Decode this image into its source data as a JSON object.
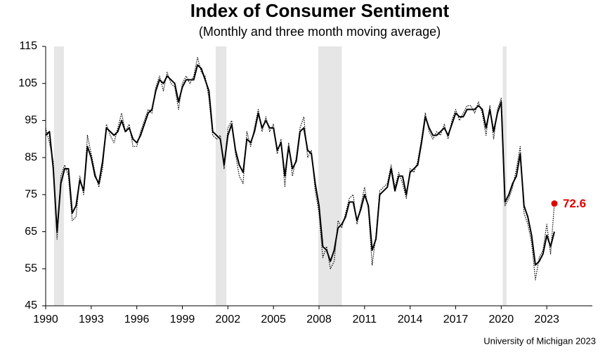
{
  "chart_data": {
    "type": "line",
    "title": "Index of Consumer Sentiment",
    "subtitle": "(Monthly and three month moving average)",
    "source": "University of Michigan 2023",
    "x": [
      1990,
      1990.25,
      1990.5,
      1990.75,
      1991,
      1991.25,
      1991.5,
      1991.75,
      1992,
      1992.25,
      1992.5,
      1992.75,
      1993,
      1993.25,
      1993.5,
      1993.75,
      1994,
      1994.25,
      1994.5,
      1994.75,
      1995,
      1995.25,
      1995.5,
      1995.75,
      1996,
      1996.25,
      1996.5,
      1996.75,
      1997,
      1997.25,
      1997.5,
      1997.75,
      1998,
      1998.25,
      1998.5,
      1998.75,
      1999,
      1999.25,
      1999.5,
      1999.75,
      2000,
      2000.25,
      2000.5,
      2000.75,
      2001,
      2001.25,
      2001.5,
      2001.75,
      2002,
      2002.25,
      2002.5,
      2002.75,
      2003,
      2003.25,
      2003.5,
      2003.75,
      2004,
      2004.25,
      2004.5,
      2004.75,
      2005,
      2005.25,
      2005.5,
      2005.75,
      2006,
      2006.25,
      2006.5,
      2006.75,
      2007,
      2007.25,
      2007.5,
      2007.75,
      2008,
      2008.25,
      2008.5,
      2008.75,
      2009,
      2009.25,
      2009.5,
      2009.75,
      2010,
      2010.25,
      2010.5,
      2010.75,
      2011,
      2011.25,
      2011.5,
      2011.75,
      2012,
      2012.25,
      2012.5,
      2012.75,
      2013,
      2013.25,
      2013.5,
      2013.75,
      2014,
      2014.25,
      2014.5,
      2014.75,
      2015,
      2015.25,
      2015.5,
      2015.75,
      2016,
      2016.25,
      2016.5,
      2016.75,
      2017,
      2017.25,
      2017.5,
      2017.75,
      2018,
      2018.25,
      2018.5,
      2018.75,
      2019,
      2019.25,
      2019.5,
      2019.75,
      2020,
      2020.25,
      2020.5,
      2020.75,
      2021,
      2021.25,
      2021.5,
      2021.75,
      2022,
      2022.25,
      2022.5,
      2022.75,
      2023,
      2023.25,
      2023.5
    ],
    "series": [
      {
        "name": "Three month moving average",
        "color": "#000000",
        "style": "solid",
        "values": [
          91,
          92,
          82,
          65,
          78,
          82,
          82,
          70,
          72,
          79,
          76,
          88,
          85,
          80,
          78,
          84,
          93,
          92,
          91,
          92,
          95,
          92,
          93,
          90,
          89,
          91,
          94,
          97,
          98,
          103,
          106,
          105,
          107,
          106,
          105,
          100,
          104,
          106,
          106,
          106,
          110,
          109,
          106,
          103,
          92,
          91,
          90,
          83,
          91,
          94,
          87,
          83,
          81,
          90,
          89,
          92,
          97,
          93,
          95,
          93,
          93,
          87,
          89,
          80,
          88,
          82,
          84,
          92,
          93,
          87,
          86,
          78,
          72,
          61,
          60,
          57,
          60,
          66,
          67,
          69,
          73,
          73,
          68,
          71,
          75,
          72,
          60,
          63,
          75,
          76,
          77,
          82,
          76,
          80,
          80,
          75,
          81,
          82,
          83,
          89,
          96,
          93,
          91,
          91,
          92,
          93,
          91,
          94,
          97,
          96,
          96,
          98,
          98,
          98,
          99,
          98,
          93,
          98,
          92,
          97,
          100,
          73,
          75,
          78,
          80,
          86,
          72,
          69,
          64,
          56,
          57,
          59,
          64,
          61,
          65
        ]
      },
      {
        "name": "Monthly",
        "color": "#000000",
        "style": "dotted",
        "values": [
          93,
          89,
          84,
          63,
          80,
          83,
          80,
          68,
          69,
          80,
          75,
          91,
          86,
          81,
          77,
          82,
          94,
          91,
          89,
          93,
          97,
          92,
          94,
          88,
          88,
          92,
          95,
          98,
          97,
          104,
          107,
          103,
          108,
          105,
          104,
          98,
          105,
          107,
          105,
          107,
          112,
          108,
          107,
          101,
          91,
          90,
          91,
          82,
          93,
          95,
          86,
          80,
          78,
          92,
          88,
          93,
          98,
          92,
          96,
          92,
          94,
          86,
          90,
          77,
          89,
          80,
          85,
          93,
          96,
          85,
          87,
          76,
          70,
          58,
          61,
          55,
          57,
          68,
          66,
          70,
          74,
          75,
          67,
          72,
          77,
          71,
          56,
          64,
          76,
          77,
          78,
          83,
          77,
          81,
          78,
          74,
          82,
          81,
          84,
          90,
          97,
          92,
          90,
          92,
          91,
          94,
          90,
          95,
          98,
          95,
          97,
          99,
          99,
          97,
          100,
          97,
          91,
          99,
          90,
          98,
          101,
          72,
          74,
          77,
          82,
          88,
          70,
          67,
          62,
          52,
          58,
          60,
          67,
          59,
          72.6
        ]
      }
    ],
    "highlight_color": "#e00000",
    "recessions": [
      [
        1990.55,
        1991.2
      ],
      [
        2001.2,
        2001.9
      ],
      [
        2007.95,
        2009.5
      ],
      [
        2020.1,
        2020.35
      ]
    ],
    "recession_color": "#e6e6e6",
    "xlim": [
      1990,
      2026
    ],
    "xticks": [
      1990,
      1993,
      1996,
      1999,
      2002,
      2005,
      2008,
      2011,
      2014,
      2017,
      2020,
      2023
    ],
    "ylim": [
      45,
      115
    ],
    "yticks": [
      45,
      55,
      65,
      75,
      85,
      95,
      105,
      115
    ],
    "grid": false
  }
}
